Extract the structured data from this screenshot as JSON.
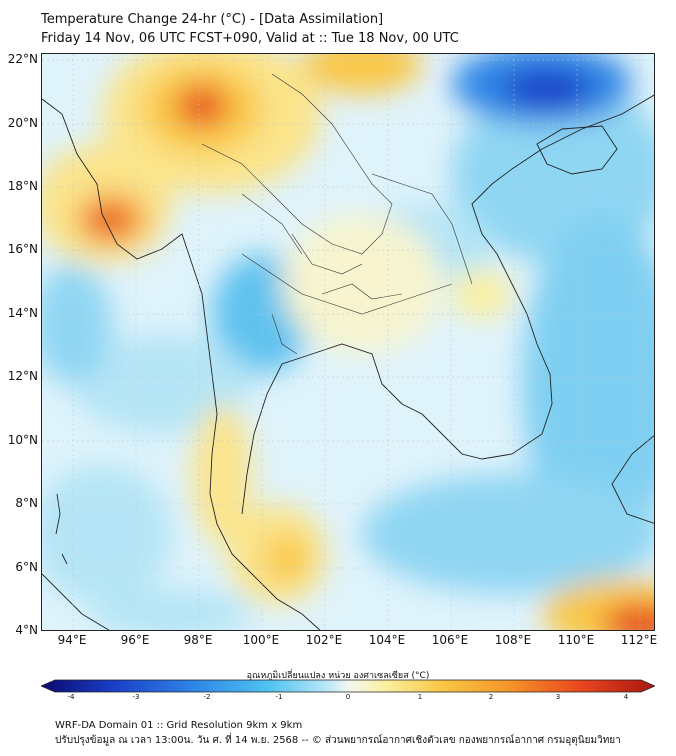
{
  "title": {
    "line1": "Temperature Change 24-hr (°C) - [Data Assimilation]",
    "line2": "Friday 14 Nov, 06 UTC FCST+090, Valid at :: Tue 18 Nov, 00 UTC"
  },
  "axes": {
    "lat_labels": [
      "22°N",
      "20°N",
      "18°N",
      "16°N",
      "14°N",
      "12°N",
      "10°N",
      "8°N",
      "6°N",
      "4°N"
    ],
    "lon_labels": [
      "94°E",
      "96°E",
      "98°E",
      "100°E",
      "102°E",
      "104°E",
      "106°E",
      "108°E",
      "110°E",
      "112°E"
    ],
    "lat_range": [
      4,
      22
    ],
    "lon_range": [
      93,
      112.5
    ]
  },
  "colorbar": {
    "title": "อุณหภูมิเปลี่ยนแปลง หน่วย องศาเซลเซียส (°C)",
    "ticks": [
      "-4",
      "-3",
      "-2",
      "-1",
      "0",
      "1",
      "2",
      "3",
      "4"
    ],
    "range": [
      -4,
      4
    ],
    "colors": [
      "#0a0a6e",
      "#1a3fc8",
      "#2f86e6",
      "#4fc3f0",
      "#bfe9f7",
      "#f2f7f2",
      "#fbf0a0",
      "#f9c846",
      "#f5962a",
      "#e8461e",
      "#a8170f"
    ]
  },
  "footer": {
    "line1": "WRF-DA Domain 01 :: Grid Resolution 9km x 9km",
    "line2": "ปรับปรุงข้อมูล ณ เวลา 13:00น. วัน ศ. ที่ 14 พ.ย. 2568 -- © ส่วนพยากรณ์อากาศเชิงตัวเลข กองพยากรณ์อากาศ กรมอุตุนิยมวิทยา"
  }
}
